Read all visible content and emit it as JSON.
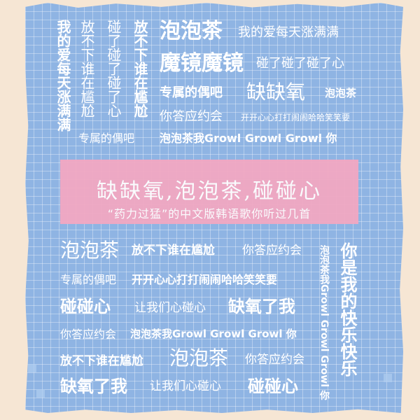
{
  "top": {
    "col1": "我的爱每天涨满满",
    "col2a": "放不下谁在尴尬",
    "col2b": "专属的偶吧",
    "col3": "碰了碰了碰了心",
    "col4": "放不下谁在尴尬",
    "r1a": "泡泡茶",
    "r1b": "我的爱每天涨满满",
    "r2a": "魔镜魔镜",
    "r2b": "碰了碰了碰了心",
    "r3a": "专属的偶吧",
    "r3b": "缺缺氧",
    "r3c": "泡泡茶",
    "r4a": "你答应约会",
    "r4b": "开开心心打打闹闹哈哈笑笑要",
    "r5": "泡泡茶我Growl Growl Growl 你"
  },
  "banner": {
    "title": "缺缺氧,泡泡茶,碰碰心",
    "subtitle": "“药力过猛”的中文版韩语歌你听过几首"
  },
  "bottom": {
    "r1a": "泡泡茶",
    "r1b": "放不下谁在尴尬",
    "r1c": "你答应约会",
    "r2a": "专属的偶吧",
    "r2b": "开开心心打打闹闹哈哈笑笑要",
    "r3a": "碰碰心",
    "r3b": "让我们心碰心",
    "r3c": "缺氧了我",
    "r4a": "你答应约会",
    "r4b": "泡泡茶我Growl Growl Growl 你",
    "r5a": "放不下谁在尴尬",
    "r5b": "泡泡茶",
    "r5c": "你答应约会",
    "r6a": "缺氧了我",
    "r6b": "让我们心碰心",
    "r6c": "碰碰心",
    "vert1": "泡泡茶我Growl Growl Growl 你",
    "vert2": "你是我的快乐快乐"
  }
}
